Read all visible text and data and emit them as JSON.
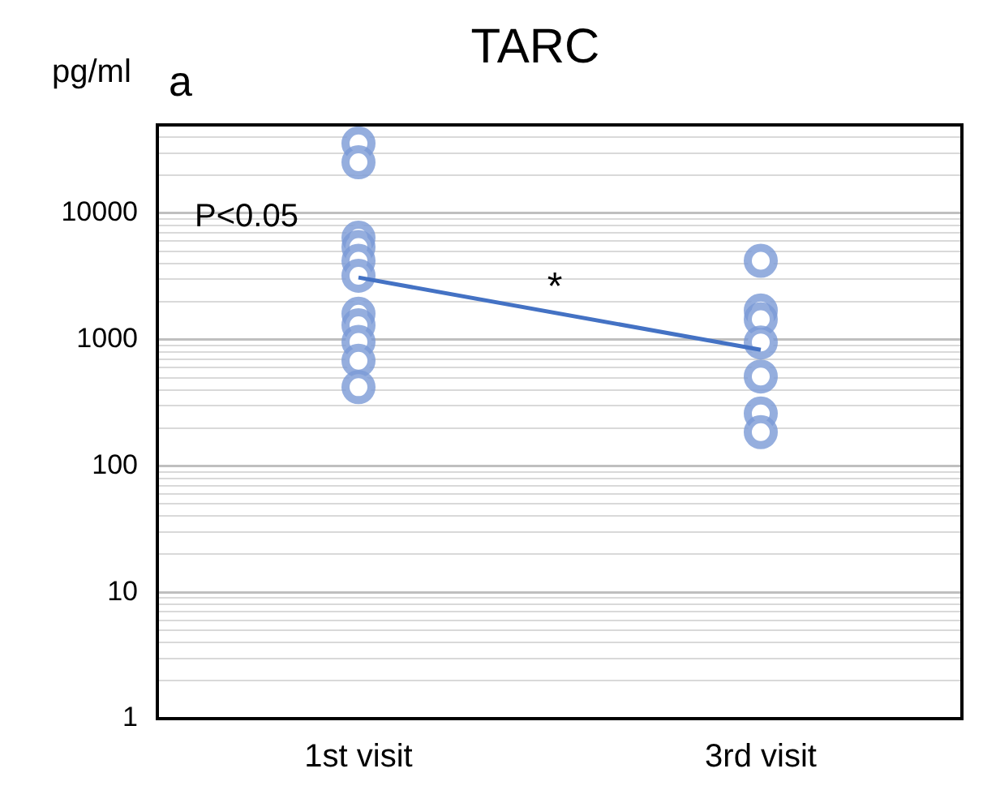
{
  "chart_data": {
    "type": "scatter",
    "title": "TARC",
    "ylabel": "pg/ml",
    "categories": [
      "1st visit",
      "3rd visit"
    ],
    "series": [
      {
        "color": "#7b9ad6",
        "x": [
          "1st visit",
          "1st visit",
          "1st visit",
          "1st visit",
          "1st visit",
          "1st visit",
          "1st visit",
          "1st visit",
          "1st visit",
          "1st visit",
          "1st visit"
        ],
        "values": [
          35700,
          25300,
          6400,
          5400,
          4200,
          3200,
          1600,
          1300,
          960,
          680,
          420
        ]
      },
      {
        "color": "#7b9ad6",
        "x": [
          "3rd visit",
          "3rd visit",
          "3rd visit",
          "3rd visit",
          "3rd visit",
          "3rd visit",
          "3rd visit"
        ],
        "values": [
          4200,
          1700,
          1450,
          950,
          510,
          260,
          185
        ]
      },
      {
        "type": "line",
        "marker": "none",
        "color": "#4472c4",
        "x": [
          "1st visit",
          "3rd visit"
        ],
        "values": [
          3100,
          830
        ]
      }
    ],
    "log": "y",
    "ylim": [
      1,
      50000
    ],
    "yticks": [
      1,
      {
        "value": 2,
        "label": null
      },
      {
        "value": 3,
        "label": null
      },
      {
        "value": 4,
        "label": null
      },
      {
        "value": 5,
        "label": null
      },
      {
        "value": 6,
        "label": null
      },
      {
        "value": 7,
        "label": null
      },
      {
        "value": 8,
        "label": null
      },
      {
        "value": 9,
        "label": null
      },
      10,
      {
        "value": 20,
        "label": null
      },
      {
        "value": 30,
        "label": null
      },
      {
        "value": 40,
        "label": null
      },
      {
        "value": 50,
        "label": null
      },
      {
        "value": 60,
        "label": null
      },
      {
        "value": 70,
        "label": null
      },
      {
        "value": 80,
        "label": null
      },
      {
        "value": 90,
        "label": null
      },
      100,
      {
        "value": 200,
        "label": null
      },
      {
        "value": 300,
        "label": null
      },
      {
        "value": 400,
        "label": null
      },
      {
        "value": 500,
        "label": null
      },
      {
        "value": 600,
        "label": null
      },
      {
        "value": 700,
        "label": null
      },
      {
        "value": 800,
        "label": null
      },
      {
        "value": 900,
        "label": null
      },
      1000,
      {
        "value": 2000,
        "label": null
      },
      {
        "value": 3000,
        "label": null
      },
      {
        "value": 4000,
        "label": null
      },
      {
        "value": 5000,
        "label": null
      },
      {
        "value": 6000,
        "label": null
      },
      {
        "value": 7000,
        "label": null
      },
      {
        "value": 8000,
        "label": null
      },
      {
        "value": 9000,
        "label": null
      },
      10000,
      {
        "value": 20000,
        "label": null
      },
      {
        "value": 30000,
        "label": null
      },
      {
        "value": 40000,
        "label": null
      },
      {
        "value": 50000,
        "label": null
      }
    ],
    "grid": "y",
    "legend": false,
    "marker": "circle",
    "annotations": [
      "a",
      "P<0.05",
      "*"
    ]
  }
}
